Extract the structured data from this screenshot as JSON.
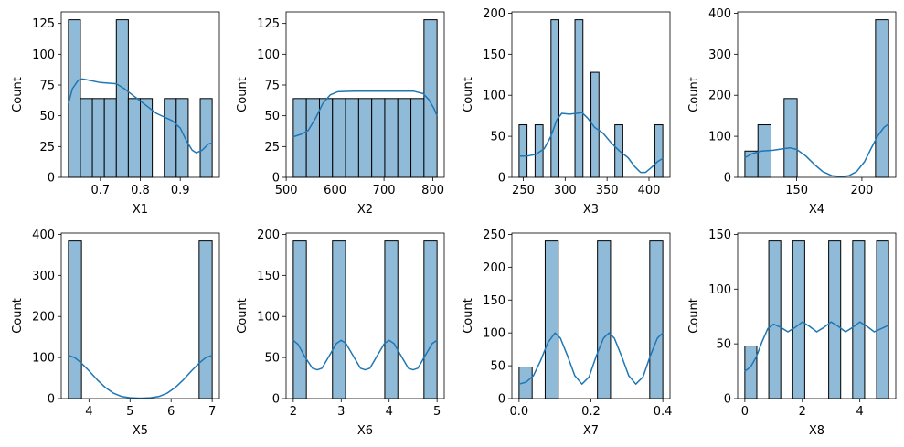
{
  "colors": {
    "bar_fill": "#8fbbd9",
    "bar_edge": "#000000",
    "kde": "#1f77b4"
  },
  "chart_data": [
    {
      "type": "bar",
      "title": "",
      "xlabel": "X1",
      "ylabel": "Count",
      "xlim": [
        0.602,
        0.998
      ],
      "ylim": [
        0,
        134.4
      ],
      "xticks": [
        0.7,
        0.8,
        0.9
      ],
      "xtick_labels": [
        "0.7",
        "0.8",
        "0.9"
      ],
      "yticks": [
        0,
        25,
        50,
        75,
        100,
        125
      ],
      "ytick_labels": [
        "0",
        "25",
        "50",
        "75",
        "100",
        "125"
      ],
      "bins": [
        [
          0.62,
          0.65,
          128
        ],
        [
          0.65,
          0.68,
          64
        ],
        [
          0.68,
          0.71,
          64
        ],
        [
          0.71,
          0.74,
          64
        ],
        [
          0.74,
          0.77,
          128
        ],
        [
          0.77,
          0.8,
          64
        ],
        [
          0.8,
          0.83,
          64
        ],
        [
          0.86,
          0.89,
          64
        ],
        [
          0.89,
          0.92,
          64
        ],
        [
          0.95,
          0.98,
          64
        ]
      ],
      "kde": [
        [
          0.62,
          60
        ],
        [
          0.63,
          72
        ],
        [
          0.645,
          79
        ],
        [
          0.655,
          80
        ],
        [
          0.67,
          79
        ],
        [
          0.7,
          77
        ],
        [
          0.74,
          76
        ],
        [
          0.76,
          72
        ],
        [
          0.78,
          67
        ],
        [
          0.8,
          62
        ],
        [
          0.82,
          57
        ],
        [
          0.84,
          52
        ],
        [
          0.86,
          49
        ],
        [
          0.88,
          46
        ],
        [
          0.9,
          40
        ],
        [
          0.915,
          30
        ],
        [
          0.93,
          22
        ],
        [
          0.94,
          20
        ],
        [
          0.955,
          22
        ],
        [
          0.97,
          27
        ],
        [
          0.98,
          28
        ]
      ]
    },
    {
      "type": "bar",
      "title": "",
      "xlabel": "X2",
      "ylabel": "Count",
      "xlim": [
        499.8,
        823.2
      ],
      "ylim": [
        0,
        134.4
      ],
      "xticks": [
        500,
        600,
        700,
        800
      ],
      "xtick_labels": [
        "500",
        "600",
        "700",
        "800"
      ],
      "yticks": [
        0,
        25,
        50,
        75,
        100,
        125
      ],
      "ytick_labels": [
        "0",
        "25",
        "50",
        "75",
        "100",
        "125"
      ],
      "bins": [
        [
          514.5,
          541.2,
          64
        ],
        [
          541.2,
          568.0,
          64
        ],
        [
          568.0,
          594.7,
          64
        ],
        [
          594.7,
          621.4,
          64
        ],
        [
          621.4,
          648.2,
          64
        ],
        [
          648.2,
          674.9,
          64
        ],
        [
          674.9,
          701.6,
          64
        ],
        [
          701.6,
          728.3,
          64
        ],
        [
          728.3,
          755.1,
          64
        ],
        [
          755.1,
          781.8,
          64
        ],
        [
          781.8,
          808.5,
          128
        ]
      ],
      "kde": [
        [
          514.5,
          33
        ],
        [
          530,
          35
        ],
        [
          545,
          38
        ],
        [
          560,
          48
        ],
        [
          575,
          60
        ],
        [
          590,
          67
        ],
        [
          605,
          69.5
        ],
        [
          640,
          70
        ],
        [
          700,
          70
        ],
        [
          760,
          70
        ],
        [
          780,
          68
        ],
        [
          792,
          63
        ],
        [
          802,
          56
        ],
        [
          808.5,
          50
        ]
      ]
    },
    {
      "type": "bar",
      "title": "",
      "xlabel": "X3",
      "ylabel": "Count",
      "xlim": [
        236.4,
        425.1
      ],
      "ylim": [
        0,
        201.6
      ],
      "xticks": [
        250,
        300,
        350,
        400
      ],
      "xtick_labels": [
        "250",
        "300",
        "350",
        "400"
      ],
      "yticks": [
        0,
        50,
        100,
        150,
        200
      ],
      "ytick_labels": [
        "0",
        "50",
        "100",
        "150",
        "200"
      ],
      "bins": [
        [
          245.0,
          254.5,
          64
        ],
        [
          264.1,
          273.6,
          64
        ],
        [
          283.1,
          292.6,
          192
        ],
        [
          311.7,
          321.2,
          192
        ],
        [
          330.8,
          340.3,
          128
        ],
        [
          359.3,
          368.8,
          64
        ],
        [
          407.0,
          416.5,
          64
        ]
      ],
      "kde": [
        [
          245,
          26
        ],
        [
          255,
          26
        ],
        [
          265,
          28
        ],
        [
          275,
          35
        ],
        [
          283,
          50
        ],
        [
          290,
          70
        ],
        [
          296,
          78
        ],
        [
          305,
          77
        ],
        [
          314,
          78
        ],
        [
          320,
          79
        ],
        [
          327,
          72
        ],
        [
          335,
          61
        ],
        [
          345,
          54
        ],
        [
          355,
          42
        ],
        [
          365,
          32
        ],
        [
          375,
          24
        ],
        [
          383,
          13
        ],
        [
          390,
          6
        ],
        [
          396,
          6
        ],
        [
          403,
          12
        ],
        [
          410,
          19
        ],
        [
          416.5,
          23
        ]
      ]
    },
    {
      "type": "bar",
      "title": "",
      "xlabel": "X4",
      "ylabel": "Count",
      "xlim": [
        104.7,
        226.0
      ],
      "ylim": [
        0,
        403.2
      ],
      "xticks": [
        150,
        200
      ],
      "xtick_labels": [
        "150",
        "200"
      ],
      "yticks": [
        0,
        100,
        200,
        300,
        400
      ],
      "ytick_labels": [
        "0",
        "100",
        "200",
        "300",
        "400"
      ],
      "bins": [
        [
          110.25,
          120.27,
          64
        ],
        [
          120.27,
          130.3,
          128
        ],
        [
          140.32,
          150.34,
          192
        ],
        [
          210.48,
          220.5,
          384
        ]
      ],
      "kde": [
        [
          110.25,
          48
        ],
        [
          116,
          58
        ],
        [
          123,
          64
        ],
        [
          132,
          66
        ],
        [
          140,
          70
        ],
        [
          145,
          72
        ],
        [
          150,
          68
        ],
        [
          157,
          52
        ],
        [
          164,
          30
        ],
        [
          170,
          14
        ],
        [
          177,
          4
        ],
        [
          184,
          2
        ],
        [
          190,
          4
        ],
        [
          196,
          14
        ],
        [
          202,
          38
        ],
        [
          207,
          70
        ],
        [
          212,
          100
        ],
        [
          217,
          122
        ],
        [
          220.5,
          130
        ]
      ]
    },
    {
      "type": "bar",
      "title": "",
      "xlabel": "X5",
      "ylabel": "Count",
      "xlim": [
        3.325,
        7.175
      ],
      "ylim": [
        0,
        403.2
      ],
      "xticks": [
        4,
        5,
        6,
        7
      ],
      "xtick_labels": [
        "4",
        "5",
        "6",
        "7"
      ],
      "yticks": [
        0,
        100,
        200,
        300,
        400
      ],
      "ytick_labels": [
        "0",
        "100",
        "200",
        "300",
        "400"
      ],
      "bins": [
        [
          3.5,
          3.818,
          384
        ],
        [
          6.682,
          7.0,
          384
        ]
      ],
      "kde": [
        [
          3.5,
          105
        ],
        [
          3.65,
          100
        ],
        [
          3.8,
          88
        ],
        [
          4.0,
          68
        ],
        [
          4.2,
          46
        ],
        [
          4.4,
          27
        ],
        [
          4.6,
          13
        ],
        [
          4.8,
          5
        ],
        [
          5.0,
          2
        ],
        [
          5.25,
          1
        ],
        [
          5.5,
          2
        ],
        [
          5.7,
          5
        ],
        [
          5.9,
          13
        ],
        [
          6.1,
          27
        ],
        [
          6.3,
          46
        ],
        [
          6.5,
          68
        ],
        [
          6.7,
          88
        ],
        [
          6.85,
          100
        ],
        [
          7.0,
          105
        ]
      ]
    },
    {
      "type": "bar",
      "title": "",
      "xlabel": "X6",
      "ylabel": "Count",
      "xlim": [
        1.85,
        5.15
      ],
      "ylim": [
        0,
        201.6
      ],
      "xticks": [
        2,
        3,
        4,
        5
      ],
      "xtick_labels": [
        "2",
        "3",
        "4",
        "5"
      ],
      "yticks": [
        0,
        50,
        100,
        150,
        200
      ],
      "ytick_labels": [
        "0",
        "50",
        "100",
        "150",
        "200"
      ],
      "bins": [
        [
          2.0,
          2.273,
          192
        ],
        [
          2.818,
          3.091,
          192
        ],
        [
          3.909,
          4.182,
          192
        ],
        [
          4.727,
          5.0,
          192
        ]
      ],
      "kde": [
        [
          2.0,
          71
        ],
        [
          2.1,
          66
        ],
        [
          2.25,
          50
        ],
        [
          2.4,
          37
        ],
        [
          2.5,
          35
        ],
        [
          2.6,
          37
        ],
        [
          2.75,
          52
        ],
        [
          2.9,
          67
        ],
        [
          3.0,
          71
        ],
        [
          3.1,
          67
        ],
        [
          3.25,
          52
        ],
        [
          3.4,
          37
        ],
        [
          3.5,
          35
        ],
        [
          3.6,
          37
        ],
        [
          3.75,
          52
        ],
        [
          3.9,
          67
        ],
        [
          4.0,
          71
        ],
        [
          4.1,
          67
        ],
        [
          4.25,
          52
        ],
        [
          4.4,
          37
        ],
        [
          4.5,
          35
        ],
        [
          4.6,
          37
        ],
        [
          4.75,
          52
        ],
        [
          4.9,
          67
        ],
        [
          5.0,
          71
        ]
      ]
    },
    {
      "type": "bar",
      "title": "",
      "xlabel": "X7",
      "ylabel": "Count",
      "xlim": [
        -0.02,
        0.42
      ],
      "ylim": [
        0,
        252
      ],
      "xticks": [
        0.0,
        0.2,
        0.4
      ],
      "xtick_labels": [
        "0.0",
        "0.2",
        "0.4"
      ],
      "yticks": [
        0,
        50,
        100,
        150,
        200,
        250
      ],
      "ytick_labels": [
        "0",
        "50",
        "100",
        "150",
        "200",
        "250"
      ],
      "bins": [
        [
          0.0,
          0.0364,
          48
        ],
        [
          0.0727,
          0.1091,
          240
        ],
        [
          0.2182,
          0.2545,
          240
        ],
        [
          0.3636,
          0.4,
          240
        ]
      ],
      "kde": [
        [
          0.0,
          22
        ],
        [
          0.02,
          25
        ],
        [
          0.04,
          35
        ],
        [
          0.06,
          58
        ],
        [
          0.08,
          85
        ],
        [
          0.1,
          100
        ],
        [
          0.115,
          92
        ],
        [
          0.135,
          65
        ],
        [
          0.155,
          35
        ],
        [
          0.175,
          22
        ],
        [
          0.195,
          33
        ],
        [
          0.215,
          65
        ],
        [
          0.235,
          92
        ],
        [
          0.25,
          100
        ],
        [
          0.265,
          92
        ],
        [
          0.285,
          65
        ],
        [
          0.305,
          35
        ],
        [
          0.325,
          22
        ],
        [
          0.345,
          33
        ],
        [
          0.365,
          65
        ],
        [
          0.385,
          92
        ],
        [
          0.4,
          100
        ]
      ]
    },
    {
      "type": "bar",
      "title": "",
      "xlabel": "X8",
      "ylabel": "Count",
      "xlim": [
        -0.25,
        5.25
      ],
      "ylim": [
        0,
        151.2
      ],
      "xticks": [
        0,
        2,
        4
      ],
      "xtick_labels": [
        "0",
        "2",
        "4"
      ],
      "yticks": [
        0,
        50,
        100,
        150
      ],
      "ytick_labels": [
        "0",
        "50",
        "100",
        "150"
      ],
      "bins": [
        [
          0.0,
          0.417,
          48
        ],
        [
          0.833,
          1.25,
          144
        ],
        [
          1.667,
          2.083,
          144
        ],
        [
          2.917,
          3.333,
          144
        ],
        [
          3.75,
          4.167,
          144
        ],
        [
          4.583,
          5.0,
          144
        ]
      ],
      "kde": [
        [
          0.0,
          25
        ],
        [
          0.2,
          29
        ],
        [
          0.4,
          38
        ],
        [
          0.6,
          52
        ],
        [
          0.8,
          64
        ],
        [
          1.0,
          68
        ],
        [
          1.25,
          65
        ],
        [
          1.5,
          61
        ],
        [
          1.75,
          65
        ],
        [
          2.0,
          70
        ],
        [
          2.25,
          66
        ],
        [
          2.5,
          61
        ],
        [
          2.75,
          65
        ],
        [
          3.0,
          70
        ],
        [
          3.25,
          66
        ],
        [
          3.5,
          61
        ],
        [
          3.75,
          65
        ],
        [
          4.0,
          70
        ],
        [
          4.25,
          66
        ],
        [
          4.5,
          61
        ],
        [
          4.75,
          64
        ],
        [
          5.0,
          67
        ]
      ]
    }
  ]
}
